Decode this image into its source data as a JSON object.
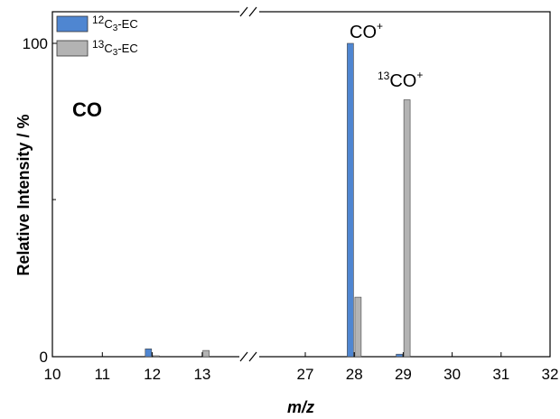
{
  "chart_data": {
    "type": "bar",
    "xlabel": "m/z",
    "ylabel": "Relative Intensity  /  %",
    "ylim": [
      0,
      100
    ],
    "y_ticks": [
      "0",
      "100"
    ],
    "x_ticks": [
      {
        "value": 10,
        "label": "10"
      },
      {
        "value": 11,
        "label": "11"
      },
      {
        "value": 12,
        "label": "12"
      },
      {
        "value": 13,
        "label": "13"
      },
      {
        "value": 27,
        "label": "27"
      },
      {
        "value": 28,
        "label": "28"
      },
      {
        "value": 29,
        "label": "29"
      },
      {
        "value": 30,
        "label": "30"
      },
      {
        "value": 31,
        "label": "31"
      },
      {
        "value": 32,
        "label": "32"
      }
    ],
    "axis_break": "between 13 and 27",
    "series": [
      {
        "name": "12C3-EC",
        "color": "#4f86d1",
        "points": [
          {
            "x": 12,
            "y": 2.5
          },
          {
            "x": 28,
            "y": 100
          },
          {
            "x": 29,
            "y": 0.8
          }
        ]
      },
      {
        "name": "13C3-EC",
        "color": "#b3b3b3",
        "points": [
          {
            "x": 12,
            "y": 0.3
          },
          {
            "x": 13,
            "y": 2.0
          },
          {
            "x": 28,
            "y": 19
          },
          {
            "x": 29,
            "y": 82
          }
        ]
      }
    ],
    "legend_position": "top-left",
    "annotations": [
      "CO+",
      "13CO+"
    ],
    "sample_label": "CO"
  },
  "legend": {
    "s1_mass": "12",
    "s1_elem": "C",
    "s1_sub": "3",
    "s1_suffix": "-EC",
    "s2_mass": "13",
    "s2_elem": "C",
    "s2_sub": "3",
    "s2_suffix": "-EC"
  },
  "labels": {
    "co_base": "CO",
    "co_charge": "+",
    "co13_mass": "13",
    "co13_base": "CO",
    "co13_charge": "+",
    "sample": "CO"
  }
}
